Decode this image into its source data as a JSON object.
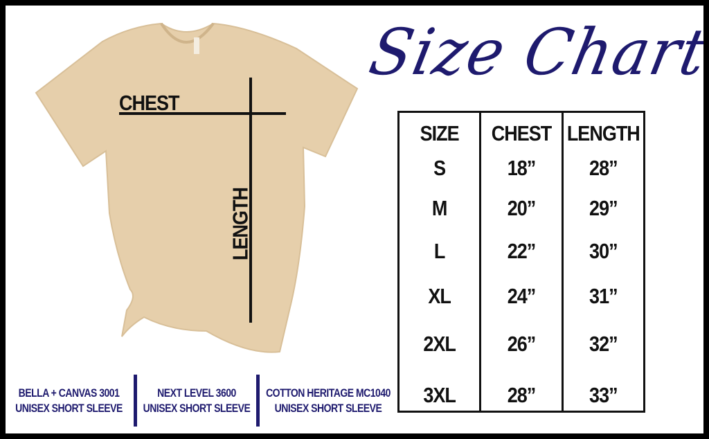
{
  "title": "Size Chart",
  "shirt": {
    "chest_label": "CHEST",
    "length_label": "LENGTH",
    "color": "#e6cfab"
  },
  "accent_color": "#1e1a6e",
  "table": {
    "headers": [
      "SIZE",
      "CHEST",
      "LENGTH"
    ],
    "rows": [
      [
        "S",
        "18”",
        "28”"
      ],
      [
        "M",
        "20”",
        "29”"
      ],
      [
        "L",
        "22”",
        "30”"
      ],
      [
        "XL",
        "24”",
        "31”"
      ],
      [
        "2XL",
        "26”",
        "32”"
      ],
      [
        "3XL",
        "28”",
        "33”"
      ]
    ]
  },
  "brands": [
    {
      "line1": "BELLA + CANVAS 3001",
      "line2": "UNISEX SHORT SLEEVE"
    },
    {
      "line1": "NEXT LEVEL 3600",
      "line2": "UNISEX SHORT SLEEVE"
    },
    {
      "line1": "COTTON HERITAGE MC1040",
      "line2": "UNISEX SHORT SLEEVE"
    }
  ]
}
